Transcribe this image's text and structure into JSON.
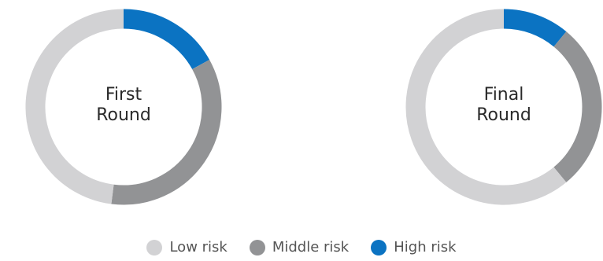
{
  "chart_data": [
    {
      "type": "pie",
      "title_lines": [
        "First",
        "Round"
      ],
      "categories": [
        "Low risk",
        "Middle risk",
        "High risk"
      ],
      "values": [
        48,
        35,
        17
      ]
    },
    {
      "type": "pie",
      "title_lines": [
        "Final",
        "Round"
      ],
      "categories": [
        "Low risk",
        "Middle risk",
        "High risk"
      ],
      "values": [
        61,
        28,
        11
      ]
    }
  ],
  "colors": {
    "Low risk": "#d2d2d4",
    "Middle risk": "#929395",
    "High risk": "#0b73c2"
  },
  "legend": {
    "items": [
      {
        "label": "Low risk",
        "color": "#d2d2d4"
      },
      {
        "label": "Middle risk",
        "color": "#929395"
      },
      {
        "label": "High risk",
        "color": "#0b73c2"
      }
    ]
  }
}
